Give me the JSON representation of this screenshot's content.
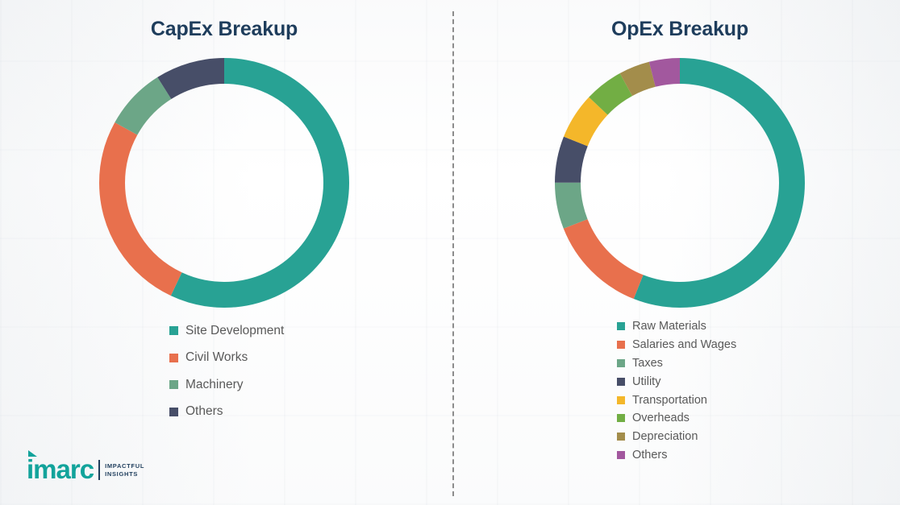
{
  "chart_data": [
    {
      "type": "pie",
      "subtype": "donut",
      "title": "CapEx Breakup",
      "categories": [
        "Site Development",
        "Civil Works",
        "Machinery",
        "Others"
      ],
      "values": [
        57,
        26,
        8,
        9
      ],
      "unit": "%",
      "colors": [
        "#28A294",
        "#E8704D",
        "#6CA687",
        "#474E68"
      ],
      "legend_position": "bottom",
      "start_angle_deg": 0,
      "direction": "clockwise"
    },
    {
      "type": "pie",
      "subtype": "donut",
      "title": "OpEx Breakup",
      "categories": [
        "Raw Materials",
        "Salaries and Wages",
        "Taxes",
        "Utility",
        "Transportation",
        "Overheads",
        "Depreciation",
        "Others"
      ],
      "values": [
        56,
        13,
        6,
        6,
        6,
        5,
        4,
        4
      ],
      "unit": "%",
      "colors": [
        "#28A294",
        "#E8704D",
        "#6CA687",
        "#474E68",
        "#F4B72A",
        "#72AE44",
        "#A38D4B",
        "#A2589E"
      ],
      "legend_position": "bottom",
      "start_angle_deg": 0,
      "direction": "clockwise"
    }
  ],
  "titles": {
    "capex": "CapEx Breakup",
    "opex": "OpEx Breakup"
  },
  "legend_text_color": "#595959",
  "title_color": "#1E3D5C",
  "logo": {
    "brand": "imarc",
    "tagline": [
      "IMPACTFUL",
      "INSIGHTS"
    ]
  }
}
